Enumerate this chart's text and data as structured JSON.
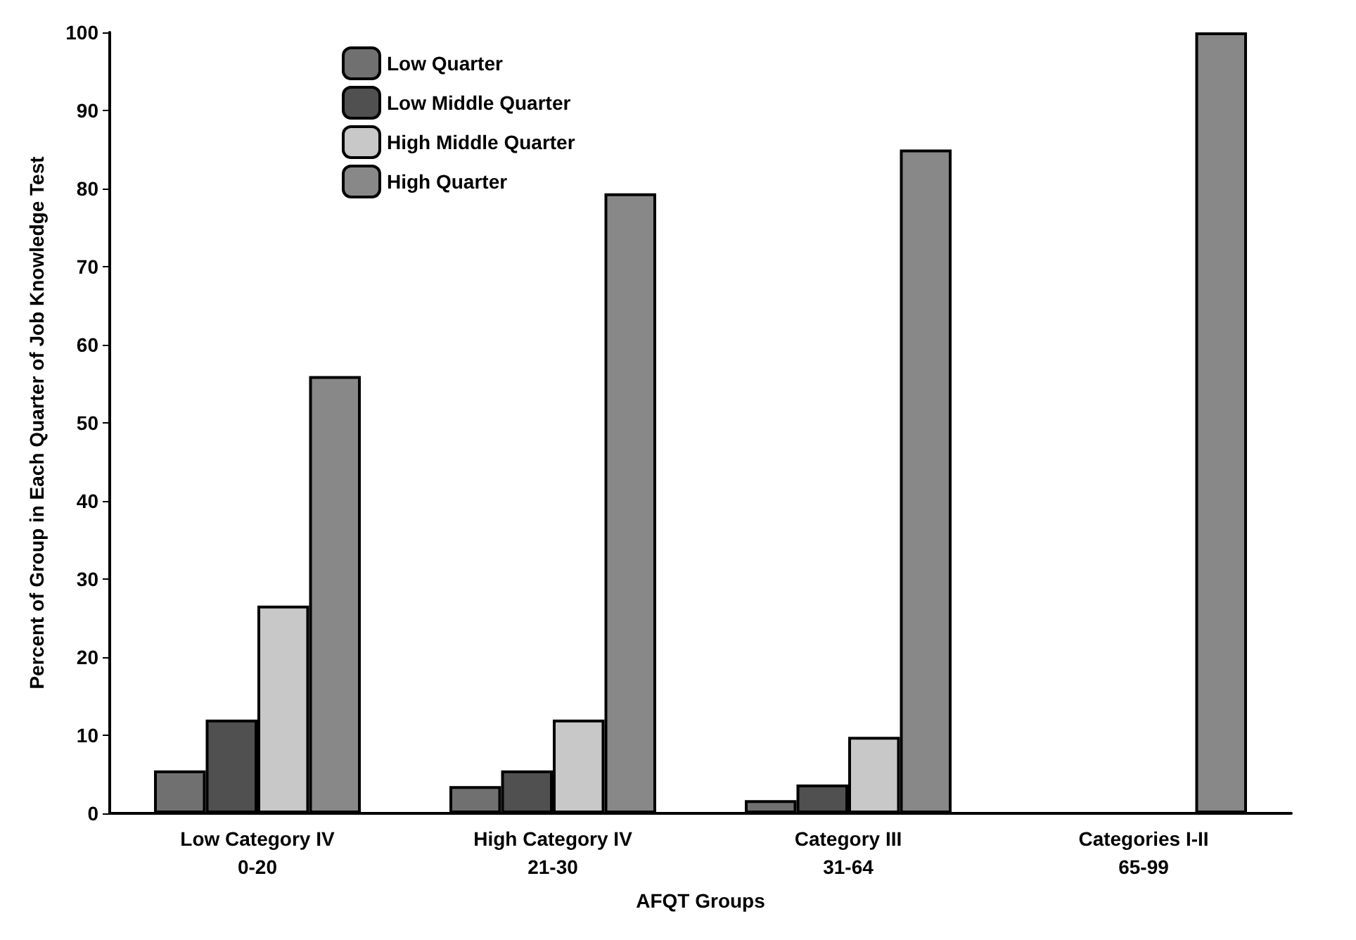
{
  "chart_data": {
    "type": "bar",
    "xlabel": "AFQT Groups",
    "ylabel": "Percent of Group in Each Quarter of Job Knowledge Test",
    "categories": [
      "Low Category IV\n0-20",
      "High Category IV\n21-30",
      "Category III\n31-64",
      "Categories I-II\n65-99"
    ],
    "series": [
      {
        "name": "Low Quarter",
        "color": "#707070",
        "values": [
          5.5,
          3.5,
          1.7,
          null
        ]
      },
      {
        "name": "Low Middle Quarter",
        "color": "#505050",
        "values": [
          12,
          5.5,
          3.7,
          null
        ]
      },
      {
        "name": "High Middle Quarter",
        "color": "#c8c8c8",
        "values": [
          26.6,
          12,
          9.8,
          null
        ]
      },
      {
        "name": "High Quarter",
        "color": "#888888",
        "values": [
          56,
          79.4,
          85,
          100
        ]
      }
    ],
    "ylim": [
      0,
      100
    ],
    "yticks": [
      0,
      10,
      20,
      30,
      40,
      50,
      60,
      70,
      80,
      90,
      100
    ],
    "grid": false,
    "legend": "top left"
  }
}
